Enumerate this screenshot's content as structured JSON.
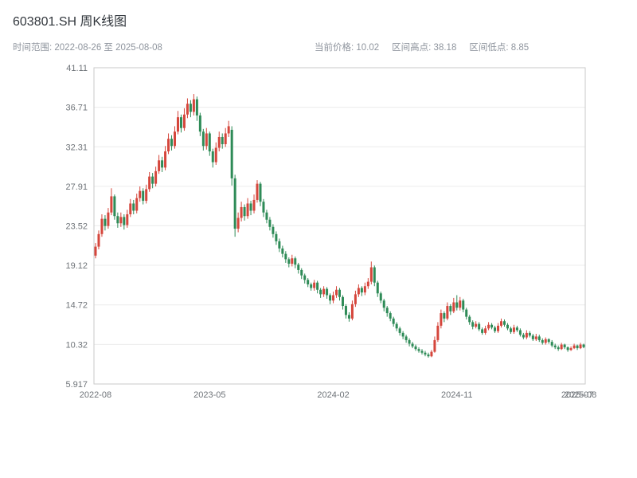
{
  "header": {
    "title": "603801.SH 周K线图",
    "range_label": "时间范围: 2022-08-26 至 2025-08-08",
    "stats": [
      "当前价格: 10.02",
      "区间高点: 38.18",
      "区间低点: 8.85"
    ]
  },
  "chart_data": {
    "type": "candlestick",
    "symbol": "603801.SH",
    "period": "weekly",
    "title": "603801.SH 周K线图",
    "date_range": [
      "2022-08-26",
      "2025-08-08"
    ],
    "current_price": 10.02,
    "range_high": 38.18,
    "range_low": 8.85,
    "grid": true,
    "up_color": "#d5463c",
    "down_color": "#2e8b57",
    "y_domain": [
      5.917,
      41.11
    ],
    "y_ticks": [
      {
        "value": 41.11,
        "label": "41.11"
      },
      {
        "value": 36.71,
        "label": "36.71"
      },
      {
        "value": 32.31,
        "label": "32.31"
      },
      {
        "value": 27.91,
        "label": "27.91"
      },
      {
        "value": 23.52,
        "label": "23.52"
      },
      {
        "value": 19.12,
        "label": "19.12"
      },
      {
        "value": 14.72,
        "label": "14.72"
      },
      {
        "value": 10.32,
        "label": "10.32"
      },
      {
        "value": 5.917,
        "label": "5.917"
      }
    ],
    "x_ticks": [
      {
        "index": 0,
        "label": "2022-08"
      },
      {
        "index": 36,
        "label": "2023-05"
      },
      {
        "index": 75,
        "label": "2024-02"
      },
      {
        "index": 114,
        "label": "2024-11"
      },
      {
        "index": 152,
        "label": "2025-07"
      },
      {
        "index": 153,
        "label": "2025-08"
      }
    ],
    "candles": [
      [
        20.2,
        21.6,
        19.9,
        21.2
      ],
      [
        21.2,
        23.0,
        20.9,
        22.6
      ],
      [
        22.6,
        24.8,
        22.3,
        24.3
      ],
      [
        24.3,
        24.7,
        23.0,
        23.5
      ],
      [
        23.5,
        25.5,
        23.2,
        25.0
      ],
      [
        25.0,
        27.7,
        24.7,
        26.8
      ],
      [
        26.8,
        27.0,
        24.2,
        24.6
      ],
      [
        24.6,
        25.0,
        23.3,
        23.8
      ],
      [
        23.8,
        25.0,
        23.4,
        24.5
      ],
      [
        24.5,
        24.8,
        23.1,
        23.6
      ],
      [
        23.6,
        25.3,
        23.3,
        24.8
      ],
      [
        24.8,
        26.5,
        24.5,
        26.0
      ],
      [
        26.0,
        26.4,
        24.8,
        25.2
      ],
      [
        25.2,
        27.1,
        24.9,
        26.6
      ],
      [
        26.6,
        27.9,
        26.2,
        27.4
      ],
      [
        27.4,
        27.7,
        25.9,
        26.3
      ],
      [
        26.3,
        28.1,
        26.0,
        27.6
      ],
      [
        27.6,
        29.5,
        27.3,
        29.0
      ],
      [
        29.0,
        29.4,
        27.7,
        28.2
      ],
      [
        28.2,
        30.1,
        27.9,
        29.6
      ],
      [
        29.6,
        31.4,
        29.3,
        30.8
      ],
      [
        30.8,
        31.2,
        29.5,
        30.0
      ],
      [
        30.0,
        32.4,
        29.7,
        31.8
      ],
      [
        31.8,
        33.8,
        31.5,
        33.2
      ],
      [
        33.2,
        33.6,
        31.9,
        32.4
      ],
      [
        32.4,
        34.6,
        32.1,
        34.0
      ],
      [
        34.0,
        36.3,
        33.7,
        35.6
      ],
      [
        35.6,
        35.9,
        33.9,
        34.4
      ],
      [
        34.4,
        36.6,
        34.1,
        35.9
      ],
      [
        35.9,
        37.7,
        35.5,
        37.1
      ],
      [
        37.1,
        37.5,
        35.6,
        36.2
      ],
      [
        36.2,
        38.18,
        35.8,
        37.6
      ],
      [
        37.6,
        37.9,
        35.2,
        35.8
      ],
      [
        35.8,
        36.1,
        33.5,
        34.0
      ],
      [
        34.0,
        34.3,
        31.9,
        32.4
      ],
      [
        32.4,
        34.4,
        32.0,
        33.8
      ],
      [
        33.8,
        34.0,
        31.3,
        31.8
      ],
      [
        31.8,
        32.1,
        30.0,
        30.6
      ],
      [
        30.6,
        32.8,
        30.3,
        32.2
      ],
      [
        32.2,
        34.0,
        31.8,
        33.4
      ],
      [
        33.4,
        33.8,
        32.1,
        32.6
      ],
      [
        32.6,
        34.4,
        32.3,
        33.8
      ],
      [
        33.8,
        35.2,
        33.4,
        34.6
      ],
      [
        34.2,
        34.6,
        28.0,
        28.8
      ],
      [
        28.8,
        29.2,
        22.3,
        23.2
      ],
      [
        23.2,
        25.0,
        22.8,
        24.4
      ],
      [
        24.4,
        26.2,
        24.0,
        25.6
      ],
      [
        25.6,
        25.9,
        24.1,
        24.6
      ],
      [
        24.6,
        26.6,
        24.3,
        26.0
      ],
      [
        26.0,
        26.3,
        24.7,
        25.2
      ],
      [
        25.2,
        27.0,
        24.9,
        26.4
      ],
      [
        26.4,
        28.6,
        26.1,
        28.2
      ],
      [
        28.2,
        28.4,
        25.7,
        26.2
      ],
      [
        26.2,
        26.5,
        24.5,
        25.0
      ],
      [
        25.0,
        25.3,
        23.8,
        24.2
      ],
      [
        24.2,
        24.5,
        23.0,
        23.4
      ],
      [
        23.4,
        23.7,
        22.2,
        22.6
      ],
      [
        22.6,
        22.9,
        21.4,
        21.8
      ],
      [
        21.8,
        22.1,
        20.6,
        21.0
      ],
      [
        21.0,
        21.3,
        20.0,
        20.4
      ],
      [
        20.4,
        20.7,
        19.4,
        19.8
      ],
      [
        19.8,
        20.0,
        18.9,
        19.3
      ],
      [
        19.3,
        20.3,
        19.0,
        19.9
      ],
      [
        19.9,
        20.1,
        18.8,
        19.2
      ],
      [
        19.2,
        19.4,
        18.2,
        18.6
      ],
      [
        18.6,
        18.8,
        17.6,
        18.0
      ],
      [
        18.0,
        18.2,
        17.1,
        17.5
      ],
      [
        17.5,
        17.7,
        16.7,
        17.0
      ],
      [
        17.0,
        17.2,
        16.3,
        16.6
      ],
      [
        16.6,
        17.5,
        16.3,
        17.2
      ],
      [
        17.2,
        17.4,
        16.0,
        16.4
      ],
      [
        16.4,
        16.6,
        15.5,
        15.9
      ],
      [
        15.9,
        16.8,
        15.6,
        16.5
      ],
      [
        16.5,
        16.7,
        15.4,
        15.8
      ],
      [
        15.8,
        16.0,
        14.8,
        15.2
      ],
      [
        15.2,
        16.2,
        14.9,
        15.8
      ],
      [
        15.8,
        16.8,
        15.5,
        16.4
      ],
      [
        16.4,
        16.6,
        15.2,
        15.6
      ],
      [
        15.6,
        15.8,
        14.2,
        14.6
      ],
      [
        14.6,
        14.8,
        13.2,
        13.6
      ],
      [
        13.6,
        13.9,
        12.85,
        13.2
      ],
      [
        13.2,
        15.2,
        13.0,
        14.8
      ],
      [
        14.8,
        16.3,
        14.5,
        15.9
      ],
      [
        15.9,
        17.0,
        15.6,
        16.6
      ],
      [
        16.6,
        16.8,
        15.7,
        16.1
      ],
      [
        16.1,
        17.2,
        15.8,
        16.8
      ],
      [
        16.8,
        17.7,
        16.5,
        17.3
      ],
      [
        17.3,
        19.54,
        17.0,
        18.9
      ],
      [
        18.9,
        19.1,
        16.8,
        17.2
      ],
      [
        17.2,
        17.4,
        15.6,
        16.0
      ],
      [
        16.0,
        16.2,
        14.9,
        15.2
      ],
      [
        15.2,
        15.4,
        14.0,
        14.4
      ],
      [
        14.4,
        14.6,
        13.4,
        13.8
      ],
      [
        13.8,
        14.0,
        12.9,
        13.2
      ],
      [
        13.2,
        13.4,
        12.3,
        12.6
      ],
      [
        12.6,
        12.8,
        11.8,
        12.1
      ],
      [
        12.1,
        12.3,
        11.3,
        11.6
      ],
      [
        11.6,
        11.8,
        10.9,
        11.2
      ],
      [
        11.2,
        11.4,
        10.5,
        10.8
      ],
      [
        10.8,
        11.0,
        10.1,
        10.4
      ],
      [
        10.4,
        10.6,
        9.9,
        10.1
      ],
      [
        10.1,
        10.3,
        9.6,
        9.8
      ],
      [
        9.8,
        10.0,
        9.4,
        9.6
      ],
      [
        9.6,
        9.8,
        9.2,
        9.4
      ],
      [
        9.4,
        9.6,
        9.0,
        9.2
      ],
      [
        9.2,
        9.4,
        8.85,
        9.0
      ],
      [
        9.0,
        9.7,
        8.9,
        9.5
      ],
      [
        9.5,
        11.2,
        9.4,
        10.8
      ],
      [
        10.8,
        12.8,
        10.6,
        12.4
      ],
      [
        12.4,
        14.2,
        12.1,
        13.8
      ],
      [
        13.8,
        14.0,
        12.8,
        13.2
      ],
      [
        13.2,
        15.0,
        13.0,
        14.6
      ],
      [
        14.6,
        14.8,
        13.6,
        14.0
      ],
      [
        14.0,
        15.5,
        13.8,
        15.0
      ],
      [
        15.0,
        15.8,
        14.1,
        14.4
      ],
      [
        14.4,
        15.6,
        14.1,
        15.2
      ],
      [
        15.2,
        15.4,
        13.9,
        14.2
      ],
      [
        14.2,
        14.4,
        13.1,
        13.4
      ],
      [
        13.4,
        13.6,
        12.5,
        12.8
      ],
      [
        12.8,
        13.0,
        12.0,
        12.3
      ],
      [
        12.3,
        12.9,
        12.1,
        12.6
      ],
      [
        12.6,
        12.8,
        11.8,
        12.0
      ],
      [
        12.0,
        12.2,
        11.4,
        11.6
      ],
      [
        11.6,
        12.4,
        11.4,
        12.1
      ],
      [
        12.1,
        12.8,
        11.9,
        12.5
      ],
      [
        12.5,
        12.7,
        12.0,
        12.2
      ],
      [
        12.2,
        12.4,
        11.6,
        11.8
      ],
      [
        11.8,
        12.7,
        11.6,
        12.4
      ],
      [
        12.4,
        13.2,
        12.2,
        12.9
      ],
      [
        12.9,
        13.1,
        12.3,
        12.5
      ],
      [
        12.5,
        12.7,
        11.9,
        12.1
      ],
      [
        12.1,
        12.3,
        11.5,
        11.7
      ],
      [
        11.7,
        12.5,
        11.5,
        12.2
      ],
      [
        12.2,
        12.4,
        11.7,
        11.9
      ],
      [
        11.9,
        12.1,
        11.2,
        11.4
      ],
      [
        11.4,
        11.6,
        10.9,
        11.1
      ],
      [
        11.1,
        11.9,
        10.9,
        11.6
      ],
      [
        11.6,
        11.8,
        11.1,
        11.3
      ],
      [
        11.3,
        11.5,
        10.7,
        10.9
      ],
      [
        10.9,
        11.5,
        10.7,
        11.2
      ],
      [
        11.2,
        11.4,
        10.6,
        10.8
      ],
      [
        10.8,
        11.0,
        10.3,
        10.5
      ],
      [
        10.5,
        11.1,
        10.3,
        10.9
      ],
      [
        10.9,
        11.0,
        10.4,
        10.6
      ],
      [
        10.6,
        10.8,
        10.0,
        10.2
      ],
      [
        10.2,
        10.4,
        9.8,
        10.0
      ],
      [
        10.0,
        10.2,
        9.6,
        9.8
      ],
      [
        9.8,
        10.5,
        9.7,
        10.3
      ],
      [
        10.3,
        10.4,
        9.8,
        10.0
      ],
      [
        10.0,
        10.1,
        9.5,
        9.7
      ],
      [
        9.7,
        10.1,
        9.6,
        9.9
      ],
      [
        9.9,
        10.4,
        9.8,
        10.2
      ],
      [
        10.2,
        10.3,
        9.7,
        9.9
      ],
      [
        9.9,
        10.5,
        9.8,
        10.3
      ],
      [
        10.3,
        10.4,
        9.9,
        10.02
      ]
    ]
  }
}
